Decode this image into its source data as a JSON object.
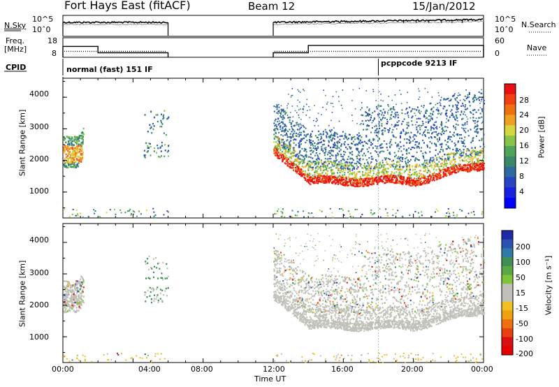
{
  "header": {
    "station": "Fort Hays East (fitACF)",
    "beam": "Beam 12",
    "date": "15/Jan/2012"
  },
  "chart_data": [
    {
      "type": "line",
      "panel": "noise",
      "left_label": "N.Sky",
      "right_label": "N.Search",
      "left_ticks": [
        "10^5",
        "10ˆ0"
      ],
      "right_ticks": [
        "10^5",
        "10ˆ0"
      ],
      "segments": [
        [
          0.0,
          6.0
        ],
        [
          12.0,
          24.0
        ]
      ]
    },
    {
      "type": "line",
      "panel": "frequency",
      "left_label_lines": [
        "Freq.",
        "[MHz]"
      ],
      "right_label": "Nave",
      "left_ticks": [
        18,
        8
      ],
      "right_ticks": [
        60,
        0
      ],
      "freq_steps": [
        [
          0.0,
          2.0,
          14.0
        ],
        [
          2.0,
          6.0,
          10.5
        ],
        [
          12.0,
          14.0,
          10.5
        ],
        [
          14.0,
          24.0,
          14.5
        ]
      ]
    },
    {
      "type": "table",
      "panel": "cpid",
      "label": "CPID",
      "entries": [
        {
          "start": 0.0,
          "text": "normal (fast) 151 IF"
        },
        {
          "start": 18.0,
          "text": "pcppcode 9213 IF"
        }
      ]
    },
    {
      "type": "heatmap",
      "panel": "power",
      "ylabel": "Slant Range [km]",
      "colorbar_label": "Power [dB]",
      "ylim": [
        180,
        4600
      ],
      "yticks": [
        1000,
        2000,
        3000,
        4000
      ],
      "colorbar_ticks": [
        "28",
        "24",
        "20",
        "16",
        "12",
        "8",
        "4"
      ],
      "colorbar_range": [
        0,
        32
      ]
    },
    {
      "type": "heatmap",
      "panel": "velocity",
      "ylabel": "Slant Range [km]",
      "colorbar_label": "Velocity [m s⁻¹]",
      "ylim": [
        180,
        4600
      ],
      "yticks": [
        1000,
        2000,
        3000,
        4000
      ],
      "colorbar_ticks": [
        "200",
        "100",
        "50",
        "15",
        "-15",
        "-50",
        "-100",
        "-200"
      ]
    }
  ],
  "time_axis": {
    "label": "Time UT",
    "ticks": [
      "00:00",
      "04:00",
      "08:00",
      "12:00",
      "16:00",
      "20:00",
      "00:00"
    ],
    "xlim": [
      0,
      24
    ]
  }
}
